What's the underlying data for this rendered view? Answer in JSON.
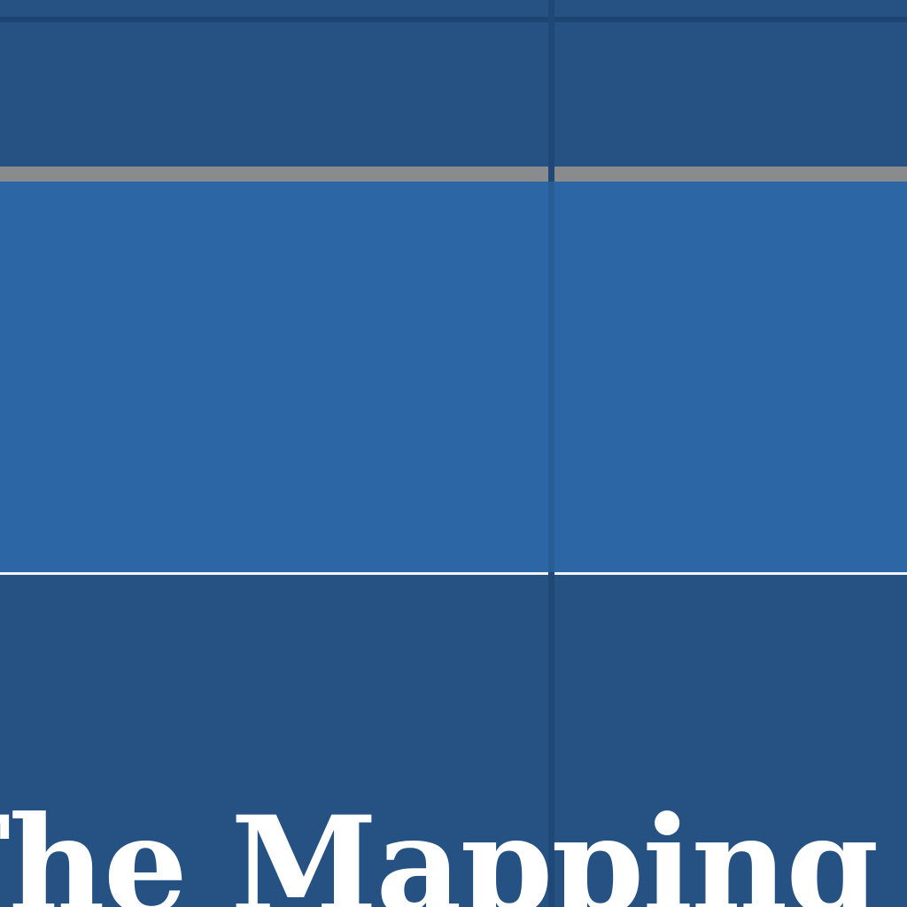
{
  "page": {
    "heading": "The Mapping C"
  },
  "colors": {
    "background": "#255283",
    "highlight_band": "#2c66a4",
    "gray_bar": "#898b8d",
    "divider": "#1f4877",
    "white_rule": "#f2f4f7",
    "heading_text": "#ffffff"
  }
}
